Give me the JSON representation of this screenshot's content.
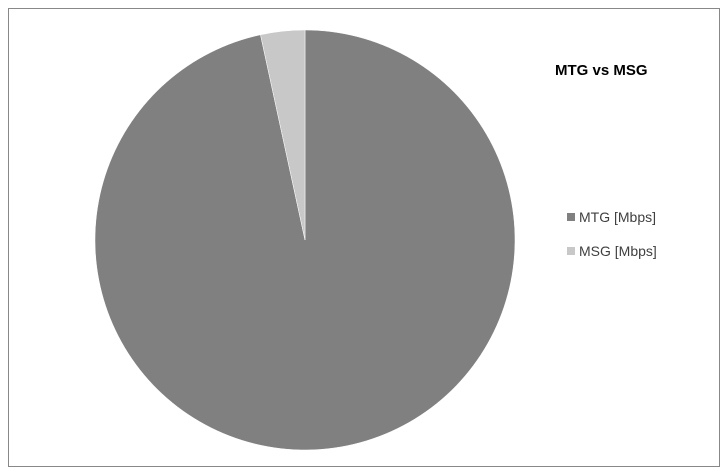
{
  "chart_data": {
    "type": "pie",
    "title": "MTG vs MSG",
    "categories": [
      "MTG [Mbps]",
      "MSG [Mbps]"
    ],
    "values": [
      96.6,
      3.4
    ],
    "colors": [
      "#808080",
      "#c8c8c8"
    ],
    "legend_position": "right"
  }
}
